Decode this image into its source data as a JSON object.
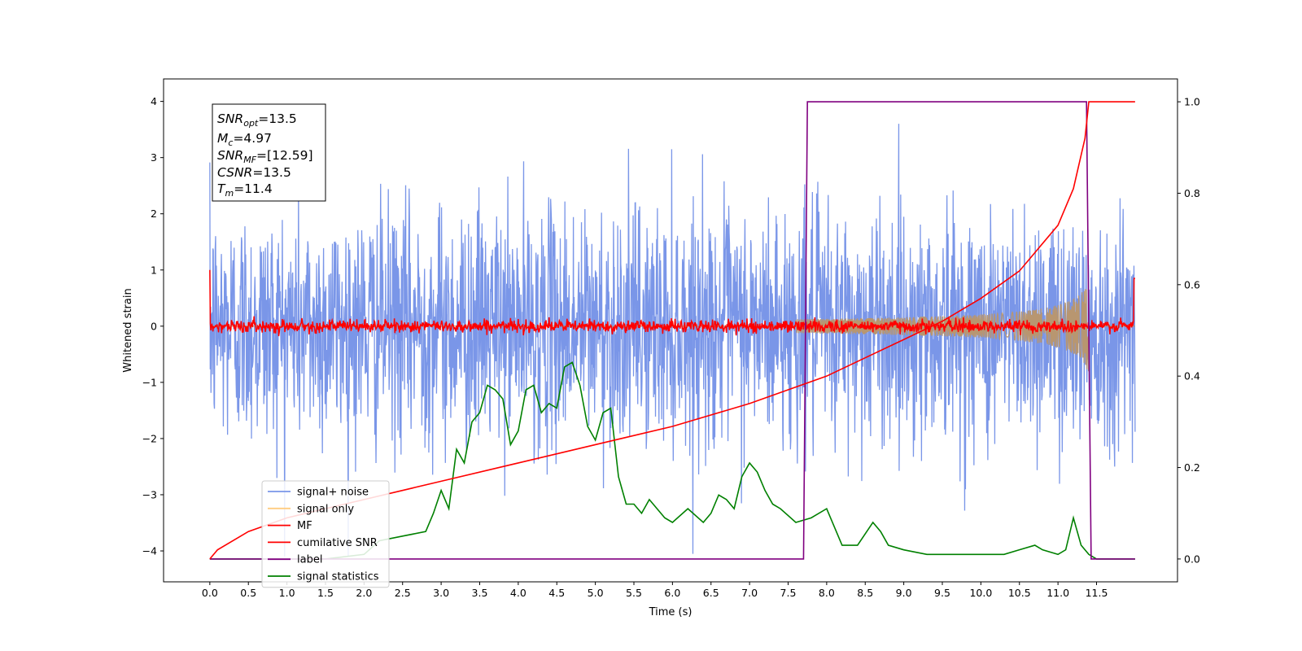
{
  "chart_data": {
    "type": "line",
    "title": "",
    "xlabel": "Time (s)",
    "ylabel": "Whitened strain",
    "ylabel_right": "",
    "xlim": [
      -0.6,
      12.55
    ],
    "ylim": [
      -4.55,
      4.4
    ],
    "ylim_right": [
      -0.05,
      1.05
    ],
    "xticks": [
      "0.0",
      "0.5",
      "1.0",
      "1.5",
      "2.0",
      "2.5",
      "3.0",
      "3.5",
      "4.0",
      "4.5",
      "5.0",
      "5.5",
      "6.0",
      "6.5",
      "7.0",
      "7.5",
      "8.0",
      "8.5",
      "9.0",
      "9.5",
      "10.0",
      "10.5",
      "11.0",
      "11.5"
    ],
    "yticks_left": [
      "4",
      "3",
      "2",
      "1",
      "0",
      "−1",
      "−2",
      "−3",
      "−4"
    ],
    "yticks_right": [
      "1.0",
      "0.8",
      "0.6",
      "0.4",
      "0.2",
      "0.0"
    ],
    "grid": false,
    "legend_placement": "lower-left",
    "stats_box": {
      "snr_opt": {
        "label": "SNR",
        "sub": "opt",
        "value": "=13.5"
      },
      "mc": {
        "label": "M",
        "sub": "c",
        "value": "=4.97"
      },
      "snr_mf": {
        "label": "SNR",
        "sub": "MF",
        "value": "=[12.59]"
      },
      "csnr": {
        "label": "CSNR",
        "sub": "",
        "value": "=13.5"
      },
      "tm": {
        "label": "T",
        "sub": "m",
        "value": "=11.4"
      }
    },
    "series": [
      {
        "name": "signal+ noise",
        "color": "#7a96e8",
        "axis": "left",
        "description": "whitened strain noise, std ~0.9, peaks ~±3.5, t from 0 to 12",
        "envelope_amplitude": 3.2
      },
      {
        "name": "signal only",
        "color": "#ffcc80",
        "axis": "left",
        "chirp": {
          "t_start": 7.6,
          "t_merger": 11.4,
          "max_amplitude": 0.85
        }
      },
      {
        "name": "MF",
        "color": "#ff0000",
        "axis": "left",
        "description": "matched filter output, small noise around 0, amplitude ~0.15",
        "start_value": 1.0,
        "end_value": 0.85
      },
      {
        "name": "cumilative SNR",
        "color": "#ff0000",
        "axis": "right",
        "x": [
          0.0,
          0.1,
          0.5,
          1.0,
          2.0,
          3.0,
          4.0,
          5.0,
          6.0,
          7.0,
          7.5,
          8.0,
          8.5,
          9.0,
          9.5,
          10.0,
          10.5,
          11.0,
          11.2,
          11.35,
          11.4,
          12.0
        ],
        "y": [
          0.0,
          0.02,
          0.06,
          0.09,
          0.13,
          0.17,
          0.21,
          0.25,
          0.29,
          0.34,
          0.37,
          0.4,
          0.44,
          0.48,
          0.52,
          0.57,
          0.63,
          0.73,
          0.81,
          0.92,
          1.0,
          1.0
        ]
      },
      {
        "name": "label",
        "color": "#800080",
        "axis": "right",
        "x": [
          0.0,
          7.7,
          7.75,
          11.37,
          11.43,
          12.0
        ],
        "y": [
          0.0,
          0.0,
          1.0,
          1.0,
          0.0,
          0.0
        ]
      },
      {
        "name": "signal statistics",
        "color": "#008000",
        "axis": "right",
        "x": [
          0.0,
          0.5,
          1.0,
          1.5,
          2.0,
          2.2,
          2.5,
          2.8,
          2.9,
          3.0,
          3.1,
          3.2,
          3.3,
          3.4,
          3.5,
          3.6,
          3.7,
          3.8,
          3.9,
          4.0,
          4.1,
          4.2,
          4.3,
          4.4,
          4.5,
          4.6,
          4.7,
          4.8,
          4.9,
          5.0,
          5.1,
          5.2,
          5.3,
          5.4,
          5.5,
          5.6,
          5.7,
          5.8,
          5.9,
          6.0,
          6.2,
          6.4,
          6.5,
          6.6,
          6.7,
          6.8,
          6.9,
          7.0,
          7.1,
          7.2,
          7.3,
          7.4,
          7.6,
          7.8,
          8.0,
          8.2,
          8.4,
          8.6,
          8.7,
          8.8,
          9.0,
          9.3,
          9.6,
          10.0,
          10.3,
          10.5,
          10.7,
          10.8,
          11.0,
          11.1,
          11.2,
          11.3,
          11.4,
          11.5,
          12.0
        ],
        "y": [
          0.0,
          0.0,
          0.0,
          0.0,
          0.01,
          0.04,
          0.05,
          0.06,
          0.1,
          0.15,
          0.11,
          0.24,
          0.21,
          0.3,
          0.32,
          0.38,
          0.37,
          0.35,
          0.25,
          0.28,
          0.37,
          0.38,
          0.32,
          0.34,
          0.33,
          0.42,
          0.43,
          0.38,
          0.29,
          0.26,
          0.32,
          0.33,
          0.18,
          0.12,
          0.12,
          0.1,
          0.13,
          0.11,
          0.09,
          0.08,
          0.11,
          0.08,
          0.1,
          0.14,
          0.13,
          0.11,
          0.18,
          0.21,
          0.19,
          0.15,
          0.12,
          0.11,
          0.08,
          0.09,
          0.11,
          0.03,
          0.03,
          0.08,
          0.06,
          0.03,
          0.02,
          0.01,
          0.01,
          0.01,
          0.01,
          0.02,
          0.03,
          0.02,
          0.01,
          0.02,
          0.09,
          0.03,
          0.01,
          0.0,
          0.0
        ]
      }
    ]
  }
}
